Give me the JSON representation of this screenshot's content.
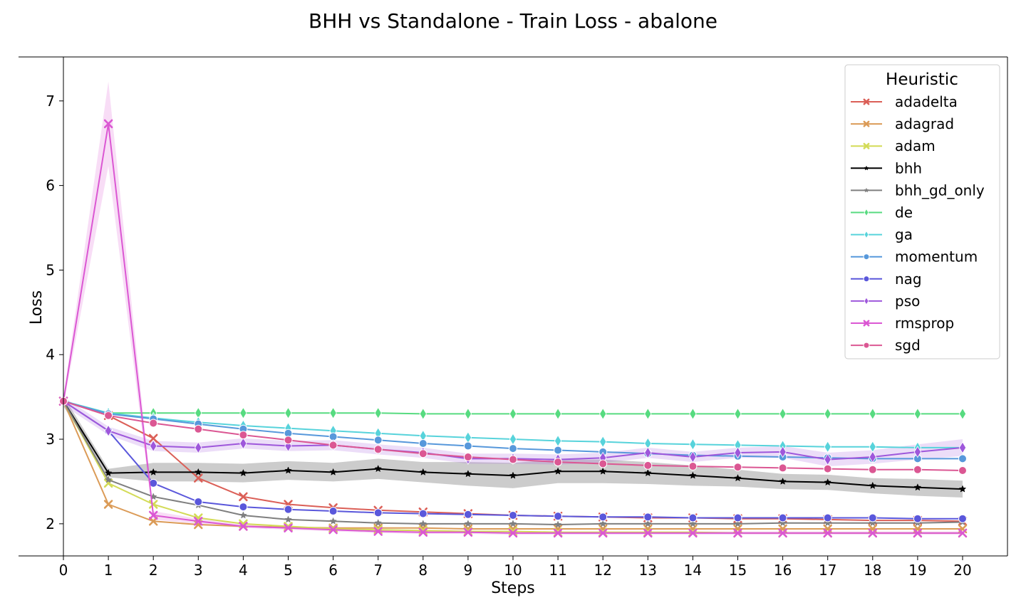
{
  "chart_data": {
    "type": "line",
    "title": "BHH vs Standalone - Train Loss - abalone",
    "xlabel": "Steps",
    "ylabel": "Loss",
    "x": [
      0,
      1,
      2,
      3,
      4,
      5,
      6,
      7,
      8,
      9,
      10,
      11,
      12,
      13,
      14,
      15,
      16,
      17,
      18,
      19,
      20
    ],
    "xlim": [
      0,
      20
    ],
    "ylim": [
      1.62,
      7.52
    ],
    "yticks": [
      2,
      3,
      4,
      5,
      6,
      7
    ],
    "grid": false,
    "legend": {
      "title": "Heuristic",
      "placement": "top-right"
    },
    "series": [
      {
        "name": "adadelta",
        "color": "#db5f57",
        "marker": "x",
        "values": [
          3.45,
          3.28,
          3.01,
          2.54,
          2.32,
          2.23,
          2.19,
          2.16,
          2.14,
          2.12,
          2.1,
          2.09,
          2.08,
          2.07,
          2.07,
          2.06,
          2.06,
          2.05,
          2.04,
          2.04,
          2.03
        ]
      },
      {
        "name": "adagrad",
        "color": "#db9b57",
        "marker": "x",
        "values": [
          3.45,
          2.23,
          2.03,
          1.99,
          1.97,
          1.96,
          1.95,
          1.95,
          1.95,
          1.94,
          1.94,
          1.94,
          1.94,
          1.94,
          1.94,
          1.94,
          1.94,
          1.94,
          1.94,
          1.94,
          1.94
        ]
      },
      {
        "name": "adam",
        "color": "#d3db57",
        "marker": "x",
        "values": [
          3.45,
          2.48,
          2.23,
          2.07,
          2.0,
          1.97,
          1.94,
          1.93,
          1.92,
          1.91,
          1.91,
          1.9,
          1.9,
          1.9,
          1.9,
          1.89,
          1.89,
          1.89,
          1.89,
          1.89,
          1.89
        ]
      },
      {
        "name": "bhh",
        "color": "#000000",
        "marker": "star",
        "values": [
          3.45,
          2.6,
          2.61,
          2.61,
          2.6,
          2.63,
          2.61,
          2.65,
          2.61,
          2.59,
          2.57,
          2.62,
          2.62,
          2.6,
          2.57,
          2.54,
          2.5,
          2.49,
          2.45,
          2.43,
          2.41
        ],
        "band": [
          0.06,
          0.05,
          0.11,
          0.11,
          0.11,
          0.11,
          0.11,
          0.12,
          0.12,
          0.14,
          0.15,
          0.14,
          0.14,
          0.13,
          0.12,
          0.1,
          0.09,
          0.09,
          0.09,
          0.1,
          0.1
        ]
      },
      {
        "name": "bhh_gd_only",
        "color": "#7f7f7f",
        "marker": "star",
        "values": [
          3.45,
          2.52,
          2.32,
          2.22,
          2.1,
          2.05,
          2.03,
          2.01,
          2.0,
          2.0,
          2.0,
          1.99,
          2.0,
          2.0,
          2.0,
          2.0,
          2.01,
          2.01,
          2.01,
          2.01,
          2.02
        ]
      },
      {
        "name": "de",
        "color": "#57db80",
        "marker": "diamond",
        "values": [
          3.45,
          3.31,
          3.31,
          3.31,
          3.31,
          3.31,
          3.31,
          3.31,
          3.3,
          3.3,
          3.3,
          3.3,
          3.3,
          3.3,
          3.3,
          3.3,
          3.3,
          3.3,
          3.3,
          3.3,
          3.3
        ]
      },
      {
        "name": "ga",
        "color": "#57d3db",
        "marker": "diamond",
        "values": [
          3.45,
          3.31,
          3.25,
          3.2,
          3.16,
          3.13,
          3.1,
          3.07,
          3.04,
          3.02,
          3.0,
          2.98,
          2.97,
          2.95,
          2.94,
          2.93,
          2.92,
          2.91,
          2.91,
          2.9,
          2.9
        ]
      },
      {
        "name": "momentum",
        "color": "#5798db",
        "marker": "circle",
        "values": [
          3.45,
          3.3,
          3.24,
          3.18,
          3.12,
          3.07,
          3.03,
          2.99,
          2.95,
          2.92,
          2.89,
          2.87,
          2.85,
          2.83,
          2.81,
          2.8,
          2.79,
          2.78,
          2.77,
          2.77,
          2.77
        ]
      },
      {
        "name": "nag",
        "color": "#5a57db",
        "marker": "circle",
        "values": [
          3.45,
          3.1,
          2.48,
          2.26,
          2.2,
          2.17,
          2.15,
          2.13,
          2.12,
          2.11,
          2.1,
          2.09,
          2.08,
          2.08,
          2.07,
          2.07,
          2.07,
          2.07,
          2.07,
          2.06,
          2.06
        ]
      },
      {
        "name": "pso",
        "color": "#9e57db",
        "marker": "diamond",
        "values": [
          3.45,
          3.1,
          2.92,
          2.9,
          2.95,
          2.92,
          2.93,
          2.88,
          2.84,
          2.77,
          2.77,
          2.76,
          2.78,
          2.84,
          2.79,
          2.84,
          2.85,
          2.76,
          2.79,
          2.85,
          2.9
        ],
        "band": [
          0.05,
          0.05,
          0.06,
          0.06,
          0.06,
          0.06,
          0.06,
          0.06,
          0.06,
          0.06,
          0.06,
          0.06,
          0.06,
          0.06,
          0.06,
          0.06,
          0.07,
          0.08,
          0.08,
          0.09,
          0.1
        ]
      },
      {
        "name": "rmsprop",
        "color": "#db57d3",
        "marker": "x",
        "values": [
          3.45,
          6.73,
          2.1,
          2.03,
          1.97,
          1.95,
          1.93,
          1.91,
          1.9,
          1.9,
          1.89,
          1.89,
          1.89,
          1.89,
          1.89,
          1.89,
          1.89,
          1.89,
          1.89,
          1.89,
          1.89
        ],
        "band": [
          0.05,
          0.5,
          0.05,
          0.03,
          0.02,
          0.02,
          0.02,
          0.02,
          0.02,
          0.02,
          0.02,
          0.02,
          0.02,
          0.02,
          0.02,
          0.02,
          0.02,
          0.02,
          0.02,
          0.02,
          0.02
        ]
      },
      {
        "name": "sgd",
        "color": "#db5793",
        "marker": "circle",
        "values": [
          3.45,
          3.28,
          3.19,
          3.12,
          3.05,
          2.99,
          2.93,
          2.88,
          2.83,
          2.79,
          2.76,
          2.73,
          2.71,
          2.69,
          2.68,
          2.67,
          2.66,
          2.65,
          2.64,
          2.64,
          2.63
        ]
      }
    ]
  }
}
